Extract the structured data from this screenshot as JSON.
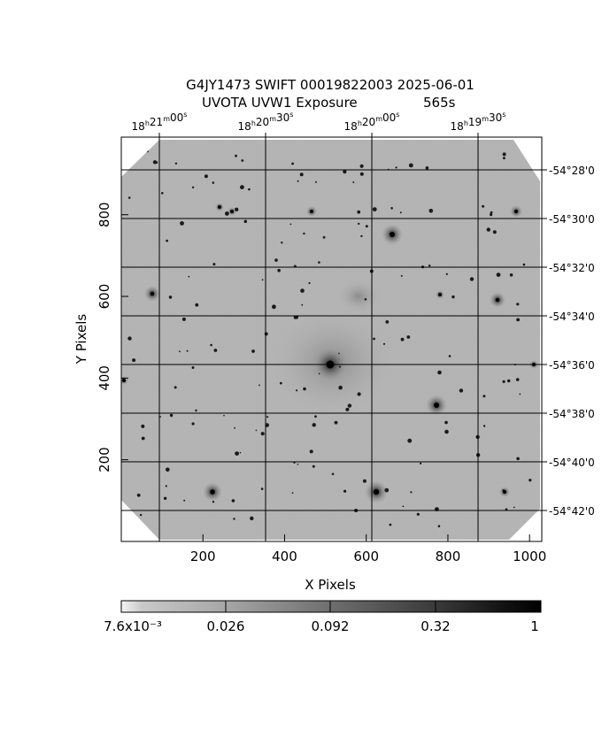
{
  "title": {
    "line1": "G4JY1473 SWIFT 00019822003 2025-06-01",
    "line2_left": "UVOTA UVW1 Exposure",
    "line2_right": "565s"
  },
  "axes": {
    "xlabel": "X Pixels",
    "ylabel": "Y Pixels",
    "x_ticks": [
      "200",
      "400",
      "600",
      "800",
      "1000"
    ],
    "y_ticks": [
      "200",
      "400",
      "600",
      "800"
    ],
    "ra_ticks": [
      {
        "h": "18",
        "m": "21",
        "s": "00"
      },
      {
        "h": "18",
        "m": "20",
        "s": "30"
      },
      {
        "h": "18",
        "m": "20",
        "s": "00"
      },
      {
        "h": "18",
        "m": "19",
        "s": "30"
      }
    ],
    "dec_ticks": [
      "-54°28'0",
      "-54°30'0",
      "-54°32'0",
      "-54°34'0",
      "-54°36'0",
      "-54°38'0",
      "-54°40'0",
      "-54°42'0"
    ],
    "x_range": [
      0,
      1030
    ],
    "y_range": [
      0,
      990
    ]
  },
  "colorbar": {
    "tick_labels": [
      "7.6x10⁻³",
      "0.026",
      "0.092",
      "0.32",
      "1"
    ]
  },
  "image_colors": {
    "background": "#b4b4b4",
    "noise_dark": "#8a8a8a",
    "star": "#000000"
  }
}
